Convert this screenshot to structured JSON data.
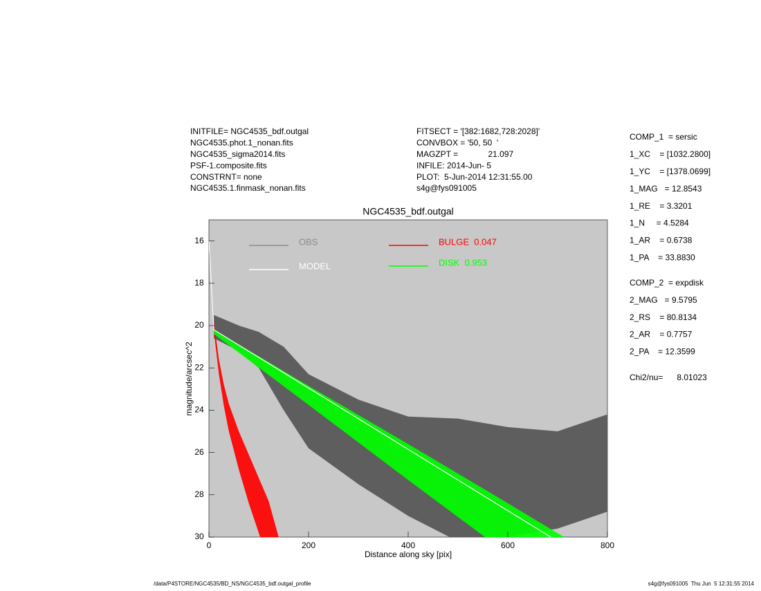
{
  "header": {
    "left": [
      "INITFILE= NGC4535_bdf.outgal",
      "NGC4535.phot.1_nonan.fits",
      "NGC4535_sigma2014.fits",
      "PSF-1.composite.fits",
      "CONSTRNT= none",
      "NGC4535.1.finmask_nonan.fits"
    ],
    "middle": [
      "FITSECT = '[382:1682,728:2028]'",
      "CONVBOX = '50, 50  '",
      "MAGZPT =             21.097",
      "INFILE: 2014-Jun- 5",
      "PLOT:  5-Jun-2014 12:31:55.00",
      "s4g@fys091005"
    ]
  },
  "params": {
    "comp1": [
      "COMP_1  = sersic",
      "1_XC    = [1032.2800]",
      "1_YC    = [1378.0699]",
      "1_MAG   = 12.8543",
      "1_RE    = 3.3201",
      "1_N     = 4.5284",
      "1_AR    = 0.6738",
      "1_PA    = 33.8830"
    ],
    "comp2": [
      "COMP_2  = expdisk",
      "2_MAG   = 9.5795",
      "2_RS    = 80.8134",
      "2_AR    = 0.7757",
      "2_PA    = 12.3599"
    ],
    "chi": "Chi2/nu=      8.01023"
  },
  "footer": {
    "left": "/data/P4STORE/NGC4535/BD_NS/NGC4535_bdf.outgal_profile",
    "right": "s4g@fys091005  Thu Jun  5 12:31:55 2014"
  },
  "chart_data": {
    "type": "area-range",
    "title": "NGC4535_bdf.outgal",
    "x_label": "Distance along sky [pix]",
    "y_label": "magnitude/arcsec^2",
    "xlim": [
      0,
      800
    ],
    "xticks": [
      0,
      200,
      400,
      600,
      800
    ],
    "ylim": [
      30,
      15
    ],
    "yticks": [
      16,
      18,
      20,
      22,
      24,
      26,
      28,
      30
    ],
    "background": "#c8c8c8",
    "series": [
      {
        "name": "OBS",
        "color": "#555555",
        "legend_color": "#8a8a8a",
        "x": [
          10,
          60,
          100,
          150,
          200,
          300,
          400,
          500,
          600,
          700,
          800
        ],
        "low": [
          19.5,
          20.0,
          20.3,
          21.0,
          22.3,
          23.5,
          24.3,
          24.4,
          24.8,
          25.0,
          24.2
        ],
        "high": [
          20.6,
          21.2,
          22.0,
          24.0,
          25.8,
          27.5,
          29.0,
          30.2,
          30.0,
          29.6,
          28.8
        ]
      },
      {
        "name": "BULGE  0.047",
        "color": "#ff0000",
        "x": [
          0,
          10,
          20,
          30,
          40,
          60,
          80,
          100,
          120,
          140
        ],
        "low": [
          16.0,
          19.8,
          21.6,
          22.8,
          23.7,
          25.0,
          26.1,
          27.2,
          28.3,
          30.0
        ],
        "high": [
          16.0,
          20.3,
          22.3,
          23.8,
          25.0,
          26.8,
          28.4,
          29.8,
          31.2,
          32.5
        ]
      },
      {
        "name": "DISK  0.953",
        "color": "#00ff00",
        "x": [
          10,
          200,
          400,
          600,
          720
        ],
        "low": [
          20.2,
          22.85,
          25.6,
          28.4,
          30.1
        ],
        "high": [
          20.4,
          23.75,
          27.3,
          30.8,
          32.9
        ]
      },
      {
        "name": "MODEL",
        "color": "#ffffff",
        "x": [
          0,
          10,
          700
        ],
        "values": [
          16.0,
          20.2,
          30.2
        ]
      }
    ]
  }
}
